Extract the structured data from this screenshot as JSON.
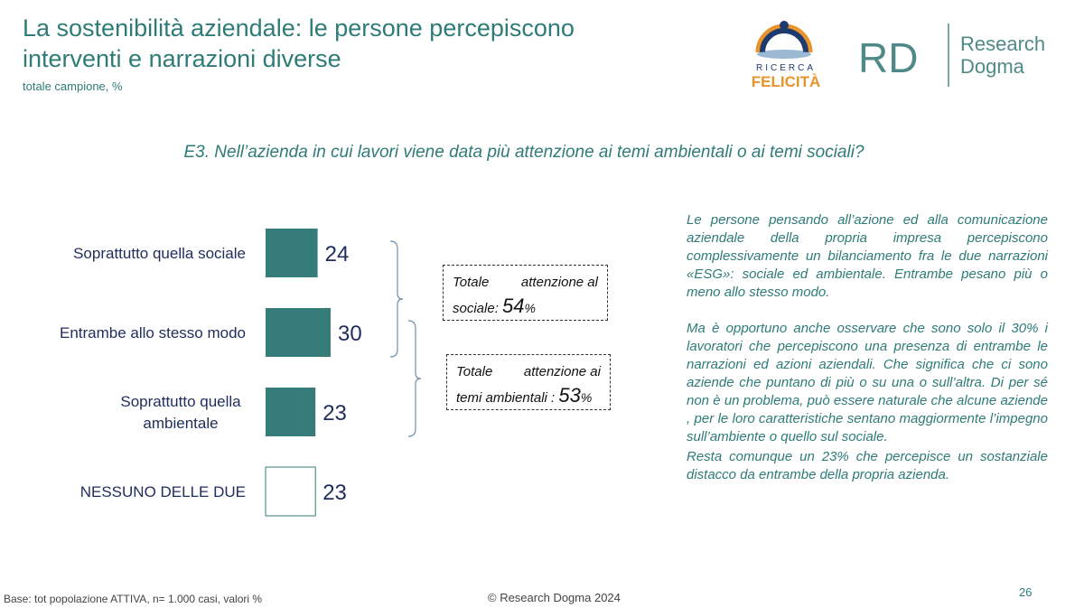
{
  "header": {
    "title": "La sostenibilità aziendale: le persone percepiscono interventi e narrazioni diverse",
    "subtitle": "totale campione, %"
  },
  "logos": {
    "ricerca_felicita_top": "RICERCA",
    "ricerca_felicita_bottom": "FELICITÀ",
    "rd_mark": "RD",
    "rd_name_1": "Research",
    "rd_name_2": "Dogma"
  },
  "question": "E3. Nell’azienda in cui lavori viene data più attenzione ai temi ambientali o ai temi sociali?",
  "chart_data": {
    "type": "bar",
    "orientation": "horizontal",
    "categories": [
      "Soprattutto quella sociale",
      "Entrambe allo stesso modo",
      "Soprattutto quella ambientale",
      "NESSUNO DELLE DUE"
    ],
    "category_lines": [
      [
        "Soprattutto quella sociale"
      ],
      [
        "Entrambe allo stesso modo"
      ],
      [
        "Soprattutto quella",
        "ambientale"
      ],
      [
        "NESSUNO DELLE DUE"
      ]
    ],
    "values": [
      24,
      30,
      23,
      23
    ],
    "filled": [
      true,
      true,
      true,
      false
    ],
    "bar_color": "#367d7a",
    "xlim": [
      0,
      35
    ]
  },
  "summary_boxes": [
    {
      "line1_a": "Totale",
      "line1_b": "attenzione al",
      "line2": "sociale:",
      "value": "54",
      "unit": "%"
    },
    {
      "line1_a": "Totale",
      "line1_b": "attenzione ai",
      "line2": "temi ambientali :",
      "value": "53",
      "unit": "%"
    }
  ],
  "commentary": [
    "Le persone pensando all’azione ed alla comunicazione aziendale della propria impresa percepiscono complessivamente un bilanciamento fra le due narrazioni «ESG»: sociale ed ambientale. Entrambe pesano più o meno allo stesso modo.",
    "Ma è opportuno anche osservare che sono solo il 30% i lavoratori che percepiscono una presenza di entrambe le narrazioni ed azioni aziendali. Che significa che ci sono aziende che puntano di più o su una o sull’altra. Di per sé non è un problema, può essere naturale che alcune aziende , per le loro caratteristiche sentano maggiormente l’impegno sull’ambiente o quello sul sociale.",
    " Resta comunque un 23% che percepisce un sostanziale distacco da entrambe della propria azienda."
  ],
  "footer": {
    "base": "Base: tot popolazione ATTIVA, n= 1.000 casi, valori %",
    "copyright": "© Research Dogma 2024",
    "page": "26"
  },
  "colors": {
    "accent": "#2e7b78",
    "bar": "#367d7a",
    "navy": "#1f2d5c",
    "felicita_orange": "#e8942a"
  }
}
